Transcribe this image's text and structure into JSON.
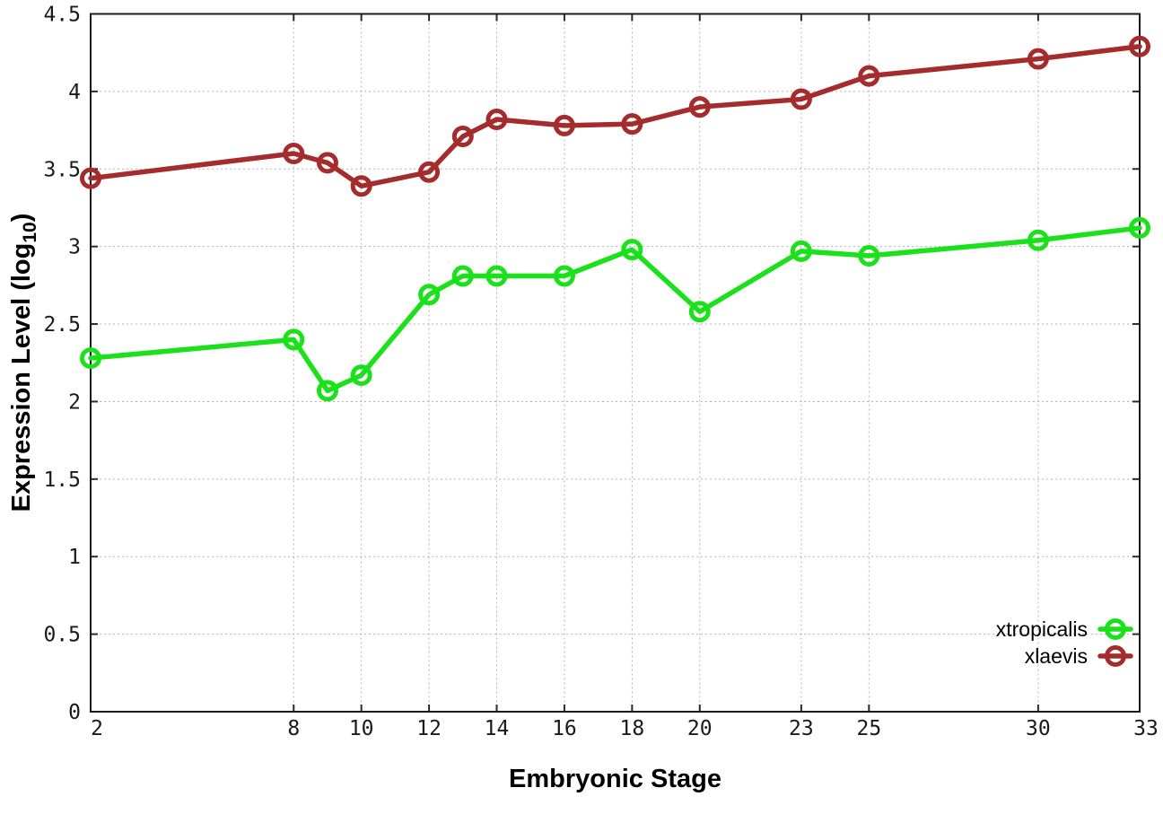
{
  "figure": {
    "background": "#ffffff",
    "axis_color": "#1a1a1a",
    "tick_color": "#2a2a2a",
    "grid_color": "#b3b3b3"
  },
  "x_axis": {
    "label": "Embryonic Stage",
    "min": 2,
    "max": 33,
    "ticks": [
      2,
      8,
      10,
      12,
      14,
      16,
      18,
      20,
      23,
      25,
      30,
      33
    ]
  },
  "y_axis": {
    "label_main": "Expression Level (log",
    "label_subscript": "10",
    "label_suffix": ")",
    "min": 0,
    "max": 4.5,
    "ticks": [
      0,
      0.5,
      1,
      1.5,
      2,
      2.5,
      3,
      3.5,
      4,
      4.5
    ]
  },
  "legend": {
    "position": "bottom-right",
    "entries": [
      "xtropicalis",
      "xlaevis"
    ]
  },
  "chart_data": {
    "type": "line",
    "title": "",
    "xlabel": "Embryonic Stage",
    "ylabel": "Expression Level (log10)",
    "xlim": [
      2,
      33
    ],
    "ylim": [
      0,
      4.5
    ],
    "grid": true,
    "legend_position": "bottom-right",
    "x": [
      2,
      8,
      9,
      10,
      12,
      13,
      14,
      16,
      18,
      20,
      23,
      25,
      30,
      33
    ],
    "series": [
      {
        "name": "xtropicalis",
        "color": "#1ae11a",
        "marker": "open-circle",
        "values": [
          2.28,
          2.4,
          2.07,
          2.17,
          2.69,
          2.81,
          2.81,
          2.81,
          2.98,
          2.58,
          2.97,
          2.94,
          3.04,
          3.12
        ]
      },
      {
        "name": "xlaevis",
        "color": "#a42c2c",
        "marker": "open-circle",
        "values": [
          3.44,
          3.6,
          3.54,
          3.39,
          3.48,
          3.71,
          3.82,
          3.78,
          3.79,
          3.9,
          3.95,
          4.1,
          4.21,
          4.29
        ]
      }
    ]
  }
}
